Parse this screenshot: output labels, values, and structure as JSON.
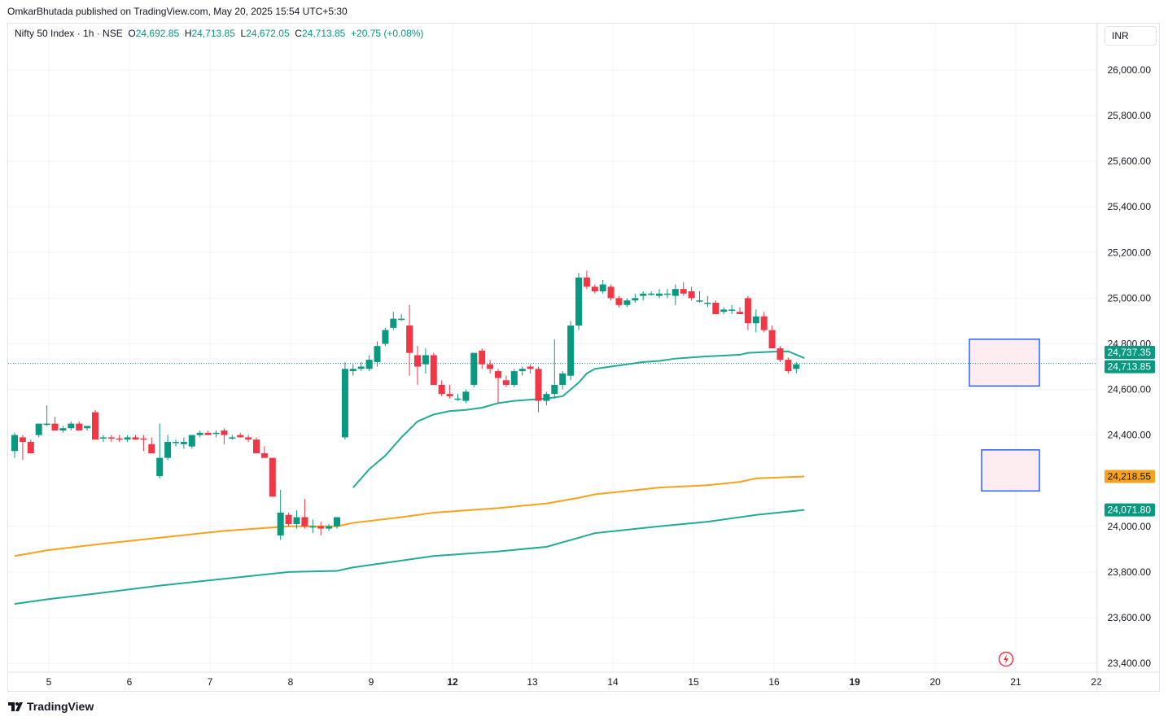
{
  "header": {
    "publisher_line": "OmkarBhutada published on TradingView.com, May 20, 2025 15:54 UTC+5:30"
  },
  "legend": {
    "symbol": "Nifty 50 Index · 1h · NSE",
    "open_label": "O",
    "open": "24,692.85",
    "high_label": "H",
    "high": "24,713.85",
    "low_label": "L",
    "low": "24,672.05",
    "close_label": "C",
    "close": "24,713.85",
    "change": "+20.75 (+0.08%)"
  },
  "currency": "INR",
  "footer": {
    "brand": "TradingView"
  },
  "colors": {
    "up": "#089981",
    "down": "#f23645",
    "ema_orange": "#f7a21b",
    "ema_teal": "#22ab94",
    "grid": "#f0f3fa",
    "box_border": "#2962ff",
    "box_fill": "#fce8ec"
  },
  "chart_data": {
    "type": "candlestick",
    "ylim": [
      23400,
      26100
    ],
    "y_ticks": [
      "26,000.00",
      "25,800.00",
      "25,600.00",
      "25,400.00",
      "25,200.00",
      "25,000.00",
      "24,800.00",
      "24,600.00",
      "24,400.00",
      "24,000.00",
      "23,800.00",
      "23,600.00",
      "23,400.00"
    ],
    "y_tick_values": [
      26000,
      25800,
      25600,
      25400,
      25200,
      25000,
      24800,
      24600,
      24400,
      24000,
      23800,
      23600,
      23400
    ],
    "x_ticks": [
      "5",
      "6",
      "7",
      "8",
      "9",
      "12",
      "13",
      "14",
      "15",
      "16",
      "19",
      "20",
      "21",
      "22"
    ],
    "x_tick_bold": [
      false,
      false,
      false,
      false,
      false,
      true,
      false,
      false,
      false,
      false,
      true,
      false,
      false,
      false
    ],
    "candles": [
      [
        24330,
        24410,
        24300,
        24400
      ],
      [
        24390,
        24400,
        24290,
        24370
      ],
      [
        24370,
        24380,
        24320,
        24320
      ],
      [
        24400,
        24450,
        24390,
        24450
      ],
      [
        24450,
        24530,
        24440,
        24450
      ],
      [
        24450,
        24480,
        24420,
        24420
      ],
      [
        24420,
        24440,
        24410,
        24430
      ],
      [
        24430,
        24460,
        24420,
        24450
      ],
      [
        24450,
        24460,
        24420,
        24420
      ],
      [
        24430,
        24440,
        24420,
        24440
      ],
      [
        24500,
        24510,
        24380,
        24380
      ],
      [
        24390,
        24400,
        24370,
        24390
      ],
      [
        24390,
        24400,
        24370,
        24385
      ],
      [
        24385,
        24400,
        24370,
        24380
      ],
      [
        24380,
        24400,
        24370,
        24390
      ],
      [
        24390,
        24400,
        24380,
        24380
      ],
      [
        24385,
        24400,
        24330,
        24380
      ],
      [
        24360,
        24390,
        24320,
        24320
      ],
      [
        24220,
        24450,
        24210,
        24300
      ],
      [
        24300,
        24400,
        24290,
        24370
      ],
      [
        24370,
        24380,
        24350,
        24370
      ],
      [
        24360,
        24390,
        24340,
        24370
      ],
      [
        24350,
        24400,
        24340,
        24400
      ],
      [
        24400,
        24420,
        24390,
        24410
      ],
      [
        24410,
        24420,
        24400,
        24400
      ],
      [
        24410,
        24420,
        24390,
        24410
      ],
      [
        24420,
        24430,
        24360,
        24400
      ],
      [
        24390,
        24400,
        24380,
        24390
      ],
      [
        24400,
        24410,
        24390,
        24390
      ],
      [
        24390,
        24400,
        24370,
        24380
      ],
      [
        24380,
        24390,
        24320,
        24320
      ],
      [
        24320,
        24350,
        24300,
        24300
      ],
      [
        24300,
        24300,
        24130,
        24130
      ],
      [
        23960,
        24160,
        23940,
        24060
      ],
      [
        24050,
        24060,
        24000,
        24010
      ],
      [
        24010,
        24070,
        23990,
        24040
      ],
      [
        24040,
        24120,
        23990,
        24000
      ],
      [
        24000,
        24030,
        23970,
        24000
      ],
      [
        24000,
        24020,
        23960,
        23990
      ],
      [
        23990,
        24010,
        23980,
        24000
      ],
      [
        24000,
        24040,
        23990,
        24040
      ],
      [
        24390,
        24720,
        24380,
        24690
      ],
      [
        24680,
        24710,
        24660,
        24690
      ],
      [
        24690,
        24720,
        24680,
        24700
      ],
      [
        24690,
        24750,
        24680,
        24730
      ],
      [
        24720,
        24810,
        24700,
        24790
      ],
      [
        24800,
        24870,
        24790,
        24860
      ],
      [
        24870,
        24940,
        24860,
        24910
      ],
      [
        24910,
        24930,
        24900,
        24910
      ],
      [
        24880,
        24970,
        24660,
        24760
      ],
      [
        24750,
        24790,
        24620,
        24700
      ],
      [
        24710,
        24780,
        24670,
        24750
      ],
      [
        24750,
        24760,
        24620,
        24620
      ],
      [
        24620,
        24640,
        24570,
        24580
      ],
      [
        24580,
        24620,
        24560,
        24570
      ],
      [
        24560,
        24580,
        24550,
        24560
      ],
      [
        24550,
        24600,
        24540,
        24590
      ],
      [
        24620,
        24760,
        24610,
        24760
      ],
      [
        24770,
        24780,
        24690,
        24710
      ],
      [
        24710,
        24730,
        24670,
        24690
      ],
      [
        24680,
        24690,
        24540,
        24650
      ],
      [
        24640,
        24660,
        24610,
        24620
      ],
      [
        24620,
        24690,
        24610,
        24680
      ],
      [
        24680,
        24700,
        24660,
        24690
      ],
      [
        24700,
        24710,
        24670,
        24690
      ],
      [
        24690,
        24700,
        24500,
        24550
      ],
      [
        24550,
        24590,
        24530,
        24580
      ],
      [
        24580,
        24820,
        24560,
        24620
      ],
      [
        24620,
        24680,
        24600,
        24670
      ],
      [
        24660,
        24900,
        24640,
        24880
      ],
      [
        24880,
        25110,
        24860,
        25090
      ],
      [
        25090,
        25120,
        25040,
        25050
      ],
      [
        25050,
        25060,
        25020,
        25030
      ],
      [
        25030,
        25080,
        25020,
        25060
      ],
      [
        25050,
        25060,
        24990,
        25000
      ],
      [
        25000,
        25010,
        24960,
        24970
      ],
      [
        24970,
        25000,
        24960,
        24990
      ],
      [
        24990,
        25020,
        24980,
        25000
      ],
      [
        25010,
        25030,
        24990,
        25020
      ],
      [
        25020,
        25030,
        25010,
        25020
      ],
      [
        25010,
        25040,
        25000,
        25020
      ],
      [
        25020,
        25040,
        25000,
        25020
      ],
      [
        25010,
        25060,
        24970,
        25040
      ],
      [
        25040,
        25070,
        25010,
        25020
      ],
      [
        25030,
        25050,
        24990,
        25000
      ],
      [
        24990,
        25030,
        24980,
        24990
      ],
      [
        24980,
        25010,
        24960,
        24980
      ],
      [
        24980,
        24990,
        24940,
        24930
      ],
      [
        24940,
        24960,
        24930,
        24950
      ],
      [
        24950,
        24970,
        24930,
        24950
      ],
      [
        24940,
        24960,
        24930,
        24930
      ],
      [
        25000,
        25010,
        24860,
        24890
      ],
      [
        24890,
        24950,
        24850,
        24920
      ],
      [
        24920,
        24940,
        24850,
        24860
      ],
      [
        24860,
        24880,
        24780,
        24780
      ],
      [
        24780,
        24790,
        24720,
        24730
      ],
      [
        24730,
        24740,
        24670,
        24680
      ],
      [
        24690,
        24720,
        24670,
        24710
      ]
    ],
    "ema_short_teal": [
      [
        42,
        24170
      ],
      [
        44,
        24250
      ],
      [
        46,
        24310
      ],
      [
        48,
        24390
      ],
      [
        50,
        24460
      ],
      [
        52,
        24490
      ],
      [
        54,
        24505
      ],
      [
        56,
        24510
      ],
      [
        58,
        24520
      ],
      [
        60,
        24540
      ],
      [
        62,
        24550
      ],
      [
        64,
        24555
      ],
      [
        66,
        24560
      ],
      [
        68,
        24570
      ],
      [
        70,
        24630
      ],
      [
        71,
        24670
      ],
      [
        72,
        24690
      ],
      [
        73,
        24695
      ],
      [
        74,
        24700
      ],
      [
        76,
        24710
      ],
      [
        78,
        24720
      ],
      [
        80,
        24725
      ],
      [
        82,
        24735
      ],
      [
        84,
        24740
      ],
      [
        86,
        24745
      ],
      [
        88,
        24748
      ],
      [
        90,
        24752
      ],
      [
        91,
        24760
      ],
      [
        94,
        24765
      ],
      [
        96,
        24767
      ],
      [
        98,
        24737.35
      ]
    ],
    "ema_long_orange": [
      [
        0,
        23870
      ],
      [
        4,
        23895
      ],
      [
        10,
        23920
      ],
      [
        18,
        23950
      ],
      [
        26,
        23980
      ],
      [
        34,
        24000
      ],
      [
        40,
        24000
      ],
      [
        42,
        24015
      ],
      [
        48,
        24040
      ],
      [
        52,
        24060
      ],
      [
        60,
        24080
      ],
      [
        66,
        24100
      ],
      [
        70,
        24125
      ],
      [
        72,
        24140
      ],
      [
        80,
        24170
      ],
      [
        86,
        24180
      ],
      [
        90,
        24195
      ],
      [
        92,
        24210
      ],
      [
        98,
        24218.55
      ]
    ],
    "ema_vlong_teal": [
      [
        0,
        23660
      ],
      [
        4,
        23680
      ],
      [
        10,
        23705
      ],
      [
        18,
        23740
      ],
      [
        26,
        23770
      ],
      [
        34,
        23800
      ],
      [
        40,
        23805
      ],
      [
        42,
        23820
      ],
      [
        48,
        23850
      ],
      [
        52,
        23870
      ],
      [
        60,
        23890
      ],
      [
        66,
        23910
      ],
      [
        70,
        23950
      ],
      [
        72,
        23970
      ],
      [
        80,
        24000
      ],
      [
        86,
        24020
      ],
      [
        90,
        24040
      ],
      [
        92,
        24050
      ],
      [
        98,
        24071.8
      ]
    ],
    "last_price": 24713.85,
    "price_labels": [
      {
        "text": "24,737.35",
        "value": 24737.35,
        "color": "#089981"
      },
      {
        "text": "24,713.85",
        "value": 24713.85,
        "color": "#089981"
      },
      {
        "text": "24,218.55",
        "value": 24218.55,
        "color": "#f7a21b"
      },
      {
        "text": "24,071.80",
        "value": 24071.8,
        "color": "#089981"
      }
    ],
    "boxes": [
      {
        "y_top": 24820,
        "y_bottom": 24615
      },
      {
        "y_top": 24335,
        "y_bottom": 24155
      }
    ]
  }
}
